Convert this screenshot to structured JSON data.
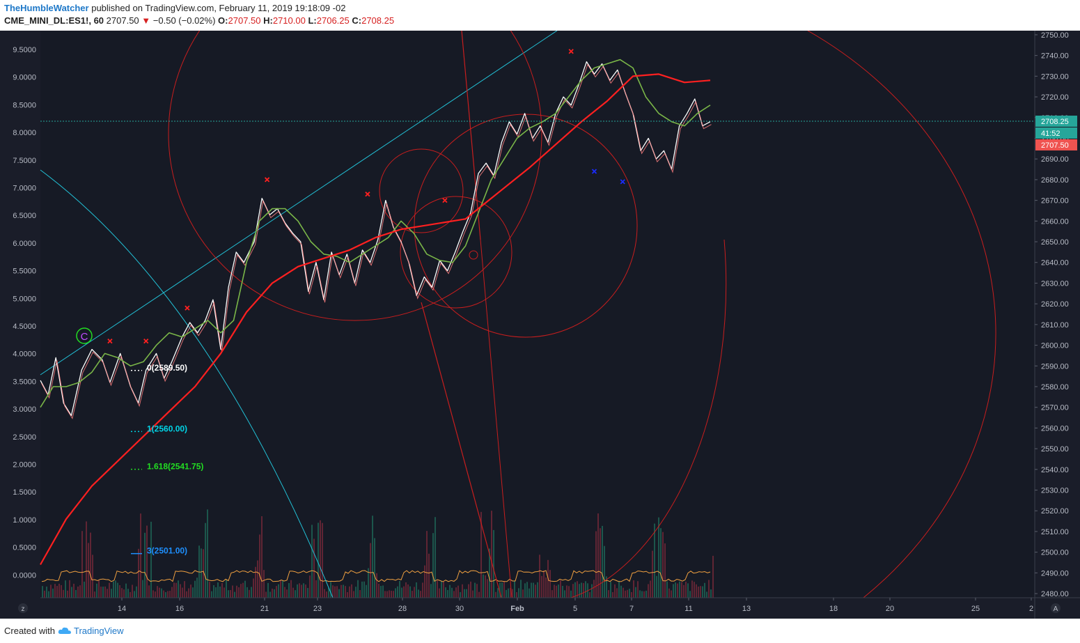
{
  "header": {
    "author": "TheHumbleWatcher",
    "published_text": "published on TradingView.com, February 11, 2019 19:18:09 -02",
    "symbol": "CME_MINI_DL:ES1!, 60",
    "last": "2707.50",
    "change": "−0.50 (−0.02%)",
    "open_label": "O:",
    "open": "2707.50",
    "high_label": "H:",
    "high": "2710.00",
    "low_label": "L:",
    "low": "2706.25",
    "close_label": "C:",
    "close": "2708.25"
  },
  "footer": {
    "created_with": "Created with",
    "brand": "TradingView"
  },
  "chart_data": {
    "type": "line",
    "x_ticks": [
      "14",
      "16",
      "21",
      "23",
      "28",
      "30",
      "Feb",
      "5",
      "7",
      "11",
      "13",
      "18",
      "20",
      "25",
      "2"
    ],
    "left_axis": {
      "ticks": [
        "9.5000",
        "9.0000",
        "8.5000",
        "8.0000",
        "7.5000",
        "7.0000",
        "6.5000",
        "6.0000",
        "5.5000",
        "5.0000",
        "4.5000",
        "4.0000",
        "3.5000",
        "3.0000",
        "2.5000",
        "2.0000",
        "1.5000",
        "1.0000",
        "0.5000",
        "0.0000"
      ]
    },
    "right_axis": {
      "ticks": [
        "2750.00",
        "2740.00",
        "2730.00",
        "2720.00",
        "2710.00",
        "2700.00",
        "2690.00",
        "2680.00",
        "2670.00",
        "2660.00",
        "2650.00",
        "2640.00",
        "2630.00",
        "2620.00",
        "2610.00",
        "2600.00",
        "2590.00",
        "2580.00",
        "2570.00",
        "2560.00",
        "2550.00",
        "2540.00",
        "2530.00",
        "2520.00",
        "2510.00",
        "2500.00",
        "2490.00",
        "2480.00"
      ],
      "range": [
        2478,
        2752
      ]
    },
    "price_tags": [
      {
        "text": "2708.25",
        "color": "#26a69a"
      },
      {
        "text": "41:52",
        "color": "#26a69a"
      },
      {
        "text": "2707.50",
        "color": "#ef5350"
      }
    ],
    "fib_labels": [
      {
        "text": "0(2589.50)",
        "color": "#ffffff"
      },
      {
        "text": "1(2560.00)",
        "color": "#00d4e6"
      },
      {
        "text": "1.618(2541.75)",
        "color": "#22dd22"
      },
      {
        "text": "3(2501.00)",
        "color": "#1e90ff"
      }
    ],
    "wave_label": "C",
    "series": [
      {
        "key": "price",
        "color": "#ffffff",
        "points": [
          [
            0,
            2583
          ],
          [
            3,
            2576
          ],
          [
            6,
            2594
          ],
          [
            9,
            2572
          ],
          [
            12,
            2566
          ],
          [
            16,
            2588
          ],
          [
            20,
            2598
          ],
          [
            24,
            2593
          ],
          [
            27,
            2582
          ],
          [
            31,
            2596
          ],
          [
            35,
            2580
          ],
          [
            38,
            2572
          ],
          [
            41,
            2588
          ],
          [
            45,
            2596
          ],
          [
            48,
            2584
          ],
          [
            51,
            2592
          ],
          [
            55,
            2604
          ],
          [
            58,
            2611
          ],
          [
            61,
            2606
          ],
          [
            64,
            2612
          ],
          [
            67,
            2622
          ],
          [
            70,
            2598
          ],
          [
            73,
            2628
          ],
          [
            76,
            2645
          ],
          [
            79,
            2640
          ],
          [
            83,
            2650
          ],
          [
            86,
            2671
          ],
          [
            89,
            2663
          ],
          [
            92,
            2666
          ],
          [
            95,
            2659
          ],
          [
            98,
            2654
          ],
          [
            101,
            2650
          ],
          [
            104,
            2626
          ],
          [
            107,
            2640
          ],
          [
            110,
            2622
          ],
          [
            113,
            2645
          ],
          [
            116,
            2634
          ],
          [
            119,
            2644
          ],
          [
            122,
            2630
          ],
          [
            125,
            2646
          ],
          [
            128,
            2640
          ],
          [
            131,
            2651
          ],
          [
            134,
            2670
          ],
          [
            137,
            2657
          ],
          [
            140,
            2650
          ],
          [
            143,
            2640
          ],
          [
            146,
            2624
          ],
          [
            149,
            2633
          ],
          [
            152,
            2628
          ],
          [
            155,
            2641
          ],
          [
            158,
            2636
          ],
          [
            161,
            2645
          ],
          [
            164,
            2655
          ],
          [
            167,
            2664
          ],
          [
            170,
            2683
          ],
          [
            173,
            2688
          ],
          [
            176,
            2682
          ],
          [
            179,
            2698
          ],
          [
            182,
            2708
          ],
          [
            185,
            2702
          ],
          [
            188,
            2712
          ],
          [
            191,
            2700
          ],
          [
            194,
            2706
          ],
          [
            197,
            2698
          ],
          [
            200,
            2712
          ],
          [
            203,
            2720
          ],
          [
            206,
            2716
          ],
          [
            209,
            2726
          ],
          [
            212,
            2737
          ],
          [
            215,
            2731
          ],
          [
            218,
            2736
          ],
          [
            221,
            2728
          ],
          [
            224,
            2733
          ],
          [
            227,
            2722
          ],
          [
            230,
            2712
          ],
          [
            233,
            2694
          ],
          [
            236,
            2700
          ],
          [
            239,
            2690
          ],
          [
            242,
            2694
          ],
          [
            245,
            2685
          ],
          [
            248,
            2706
          ],
          [
            251,
            2712
          ],
          [
            254,
            2719
          ],
          [
            257,
            2706
          ],
          [
            260,
            2708
          ]
        ]
      },
      {
        "key": "ma_fast",
        "color": "#7ab648",
        "points": [
          [
            0,
            2570
          ],
          [
            5,
            2580
          ],
          [
            10,
            2580
          ],
          [
            15,
            2582
          ],
          [
            20,
            2587
          ],
          [
            25,
            2596
          ],
          [
            30,
            2594
          ],
          [
            35,
            2590
          ],
          [
            40,
            2592
          ],
          [
            45,
            2600
          ],
          [
            50,
            2606
          ],
          [
            55,
            2604
          ],
          [
            60,
            2608
          ],
          [
            65,
            2612
          ],
          [
            70,
            2606
          ],
          [
            75,
            2612
          ],
          [
            80,
            2640
          ],
          [
            85,
            2660
          ],
          [
            90,
            2666
          ],
          [
            95,
            2666
          ],
          [
            100,
            2660
          ],
          [
            105,
            2650
          ],
          [
            110,
            2644
          ],
          [
            115,
            2643
          ],
          [
            120,
            2640
          ],
          [
            125,
            2644
          ],
          [
            130,
            2648
          ],
          [
            135,
            2652
          ],
          [
            140,
            2660
          ],
          [
            145,
            2654
          ],
          [
            150,
            2644
          ],
          [
            155,
            2641
          ],
          [
            160,
            2640
          ],
          [
            165,
            2648
          ],
          [
            170,
            2664
          ],
          [
            175,
            2680
          ],
          [
            180,
            2690
          ],
          [
            185,
            2700
          ],
          [
            190,
            2705
          ],
          [
            195,
            2708
          ],
          [
            200,
            2712
          ],
          [
            205,
            2720
          ],
          [
            210,
            2728
          ],
          [
            215,
            2734
          ],
          [
            220,
            2736
          ],
          [
            225,
            2738
          ],
          [
            230,
            2734
          ],
          [
            235,
            2720
          ],
          [
            240,
            2712
          ],
          [
            245,
            2708
          ],
          [
            250,
            2706
          ],
          [
            255,
            2712
          ],
          [
            260,
            2716
          ]
        ]
      },
      {
        "key": "ma_slow",
        "color": "#ff2020",
        "points": [
          [
            0,
            2494
          ],
          [
            10,
            2516
          ],
          [
            20,
            2532
          ],
          [
            30,
            2544
          ],
          [
            40,
            2556
          ],
          [
            50,
            2568
          ],
          [
            60,
            2580
          ],
          [
            70,
            2596
          ],
          [
            80,
            2616
          ],
          [
            90,
            2630
          ],
          [
            100,
            2638
          ],
          [
            110,
            2642
          ],
          [
            120,
            2646
          ],
          [
            130,
            2652
          ],
          [
            140,
            2656
          ],
          [
            150,
            2658
          ],
          [
            160,
            2660
          ],
          [
            165,
            2661
          ],
          [
            170,
            2666
          ],
          [
            180,
            2676
          ],
          [
            190,
            2686
          ],
          [
            200,
            2697
          ],
          [
            210,
            2708
          ],
          [
            220,
            2718
          ],
          [
            230,
            2730
          ],
          [
            240,
            2731
          ],
          [
            250,
            2727
          ],
          [
            260,
            2728
          ]
        ]
      }
    ],
    "markers": [
      {
        "x": 27,
        "y": 2602,
        "kind": "x",
        "color": "#ff2020"
      },
      {
        "x": 41,
        "y": 2602,
        "kind": "x",
        "color": "#ff2020"
      },
      {
        "x": 57,
        "y": 2618,
        "kind": "x",
        "color": "#ff2020"
      },
      {
        "x": 88,
        "y": 2680,
        "kind": "x",
        "color": "#ff2020"
      },
      {
        "x": 127,
        "y": 2673,
        "kind": "x",
        "color": "#ff2020"
      },
      {
        "x": 157,
        "y": 2670,
        "kind": "x",
        "color": "#ff2020"
      },
      {
        "x": 206,
        "y": 2742,
        "kind": "x",
        "color": "#ff2020"
      },
      {
        "x": 215,
        "y": 2684,
        "kind": "x",
        "color": "#1a2cff"
      },
      {
        "x": 226,
        "y": 2679,
        "kind": "x",
        "color": "#1a2cff"
      }
    ]
  }
}
